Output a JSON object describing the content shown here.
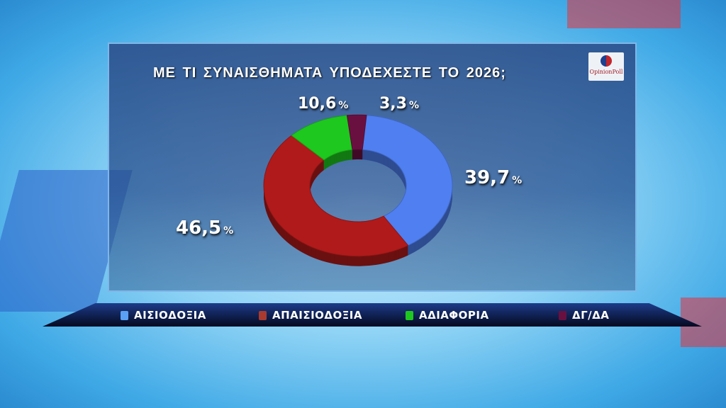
{
  "title": "ΜΕ ΤΙ ΣΥΝΑΙΣΘΗΜΑΤΑ ΥΠΟΔΕΧΕΣΤΕ ΤΟ 2026;",
  "logo_text": "OpinionPoll",
  "chart_data": {
    "type": "pie",
    "variant": "donut-3d",
    "title": "ΜΕ ΤΙ ΣΥΝΑΙΣΘΗΜΑΤΑ ΥΠΟΔΕΧΕΣΤΕ ΤΟ 2026;",
    "categories": [
      "ΑΙΣΙΟΔΟΞΙΑ",
      "ΑΠΑΙΣΙΟΔΟΞΙΑ",
      "ΑΔΙΑΦΟΡΙΑ",
      "ΔΓ/ΔΑ"
    ],
    "values": [
      39.7,
      46.5,
      10.6,
      3.3
    ],
    "labels": [
      "39,7",
      "46,5",
      "10,6",
      "3,3"
    ],
    "unit": "%",
    "colors": [
      "#4f7ff0",
      "#b01a1a",
      "#1ec81e",
      "#6a1040"
    ],
    "legend": "bottom"
  }
}
